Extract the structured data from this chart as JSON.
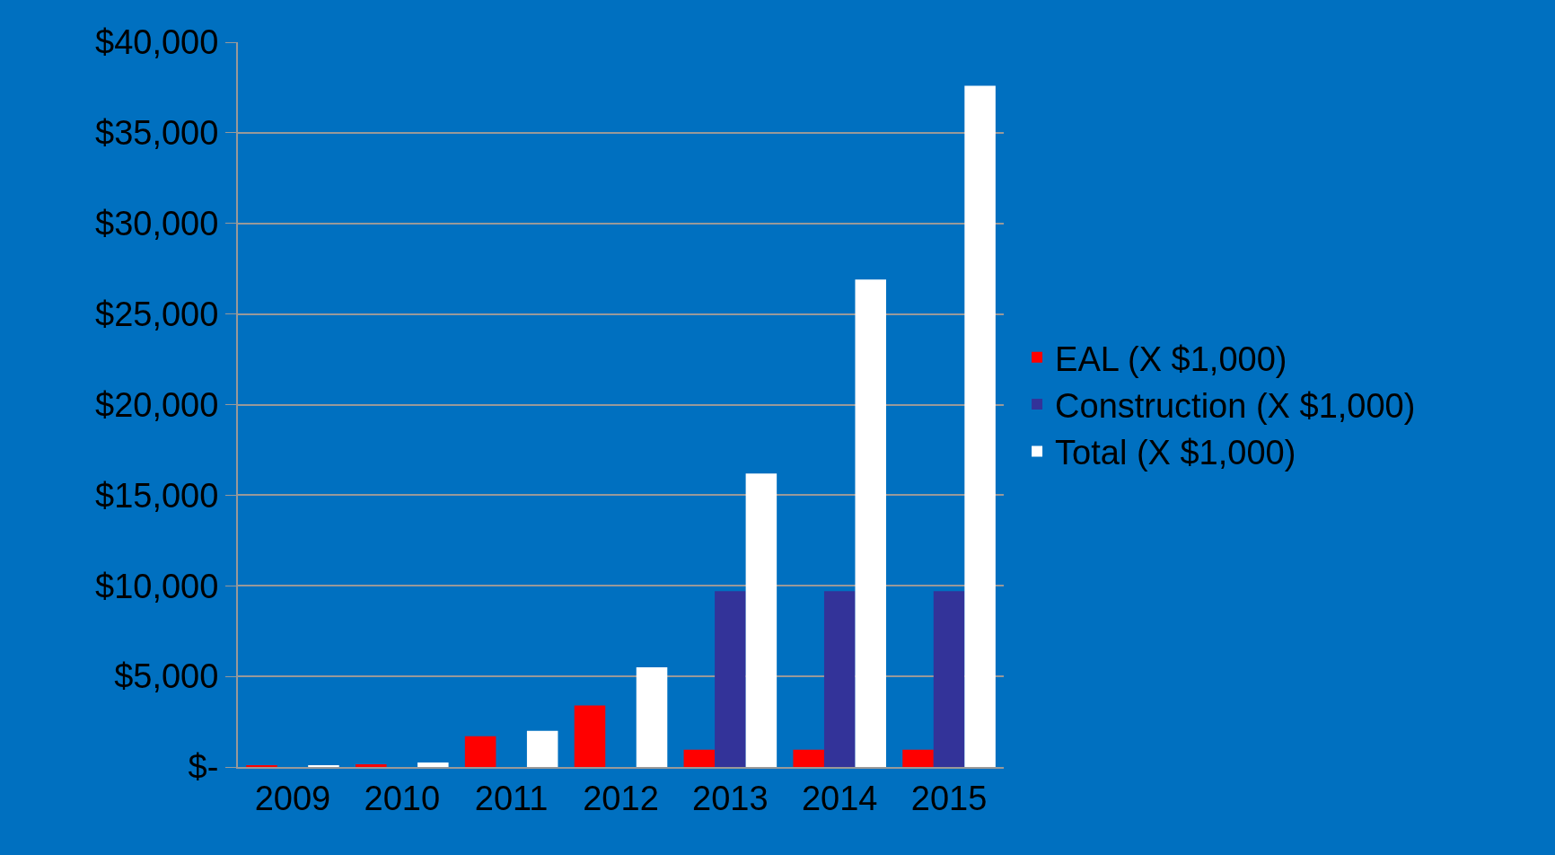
{
  "chart_data": {
    "type": "bar",
    "categories": [
      "2009",
      "2010",
      "2011",
      "2012",
      "2013",
      "2014",
      "2015"
    ],
    "series": [
      {
        "name": "EAL (X $1,000)",
        "color": "#ff0000",
        "values": [
          50,
          150,
          1700,
          3400,
          950,
          950,
          950
        ]
      },
      {
        "name": "Construction (X $1,000)",
        "color": "#333399",
        "values": [
          0,
          0,
          0,
          0,
          9700,
          9700,
          9700
        ]
      },
      {
        "name": "Total (X $1,000)",
        "color": "#ffffff",
        "values": [
          100,
          250,
          2000,
          5500,
          16200,
          26900,
          37600
        ]
      }
    ],
    "ylim": [
      0,
      40000
    ],
    "yticks": [
      {
        "value": 0,
        "label": "$-"
      },
      {
        "value": 5000,
        "label": "$5,000"
      },
      {
        "value": 10000,
        "label": "$10,000"
      },
      {
        "value": 15000,
        "label": "$15,000"
      },
      {
        "value": 20000,
        "label": "$20,000"
      },
      {
        "value": 25000,
        "label": "$25,000"
      },
      {
        "value": 30000,
        "label": "$30,000"
      },
      {
        "value": 35000,
        "label": "$35,000"
      },
      {
        "value": 40000,
        "label": "$40,000"
      }
    ],
    "grid": "y",
    "legend": "right"
  }
}
